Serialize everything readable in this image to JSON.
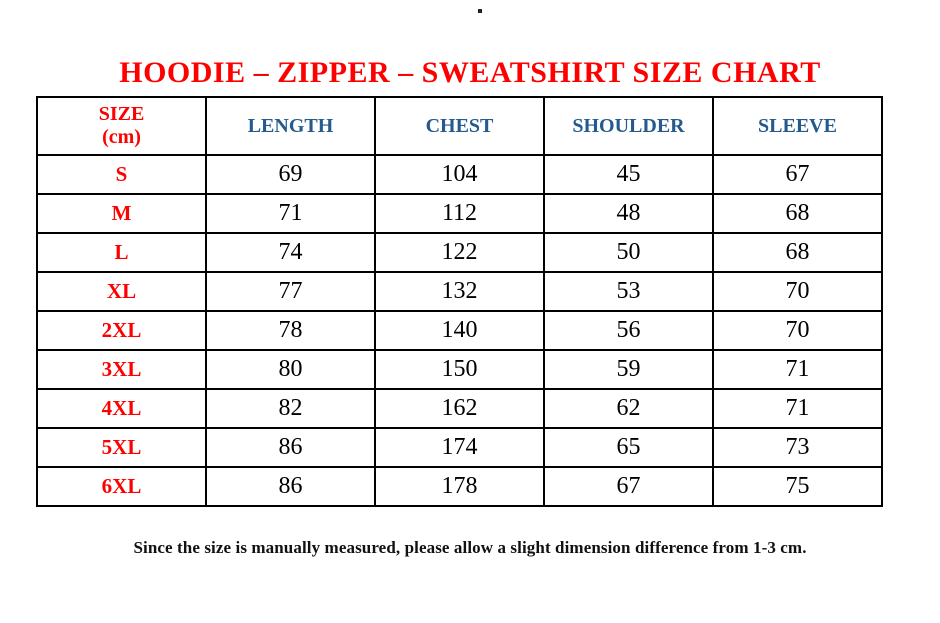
{
  "artifact": {
    "stray_mark": "."
  },
  "title": {
    "text": "HOODIE – ZIPPER – SWEATSHIRT SIZE CHART"
  },
  "table": {
    "header": {
      "size_col_line1": "SIZE",
      "size_col_line2": "(cm)",
      "measure_cols": [
        "LENGTH",
        "CHEST",
        "SHOULDER",
        "SLEEVE"
      ]
    },
    "rows": [
      {
        "size": "S",
        "length": "69",
        "chest": "104",
        "shoulder": "45",
        "sleeve": "67"
      },
      {
        "size": "M",
        "length": "71",
        "chest": "112",
        "shoulder": "48",
        "sleeve": "68"
      },
      {
        "size": "L",
        "length": "74",
        "chest": "122",
        "shoulder": "50",
        "sleeve": "68"
      },
      {
        "size": "XL",
        "length": "77",
        "chest": "132",
        "shoulder": "53",
        "sleeve": "70"
      },
      {
        "size": "2XL",
        "length": "78",
        "chest": "140",
        "shoulder": "56",
        "sleeve": "70"
      },
      {
        "size": "3XL",
        "length": "80",
        "chest": "150",
        "shoulder": "59",
        "sleeve": "71"
      },
      {
        "size": "4XL",
        "length": "82",
        "chest": "162",
        "shoulder": "62",
        "sleeve": "71"
      },
      {
        "size": "5XL",
        "length": "86",
        "chest": "174",
        "shoulder": "65",
        "sleeve": "73"
      },
      {
        "size": "6XL",
        "length": "86",
        "chest": "178",
        "shoulder": "67",
        "sleeve": "75"
      }
    ]
  },
  "footer": {
    "note": "Since the size is manually measured, please allow a slight dimension difference from 1-3 cm."
  },
  "colors": {
    "title_red": "#ff0000",
    "header_blue": "#245a8d",
    "body_text": "#000000",
    "border": "#000000"
  },
  "chart_data": {
    "type": "table",
    "title": "HOODIE – ZIPPER – SWEATSHIRT SIZE CHART",
    "unit": "cm",
    "columns": [
      "SIZE (cm)",
      "LENGTH",
      "CHEST",
      "SHOULDER",
      "SLEEVE"
    ],
    "rows": [
      [
        "S",
        69,
        104,
        45,
        67
      ],
      [
        "M",
        71,
        112,
        48,
        68
      ],
      [
        "L",
        74,
        122,
        50,
        68
      ],
      [
        "XL",
        77,
        132,
        53,
        70
      ],
      [
        "2XL",
        78,
        140,
        56,
        70
      ],
      [
        "3XL",
        80,
        150,
        59,
        71
      ],
      [
        "4XL",
        82,
        162,
        62,
        71
      ],
      [
        "5XL",
        86,
        174,
        65,
        73
      ],
      [
        "6XL",
        86,
        178,
        67,
        75
      ]
    ],
    "note": "Since the size is manually measured, please allow a slight dimension difference from 1-3 cm."
  }
}
